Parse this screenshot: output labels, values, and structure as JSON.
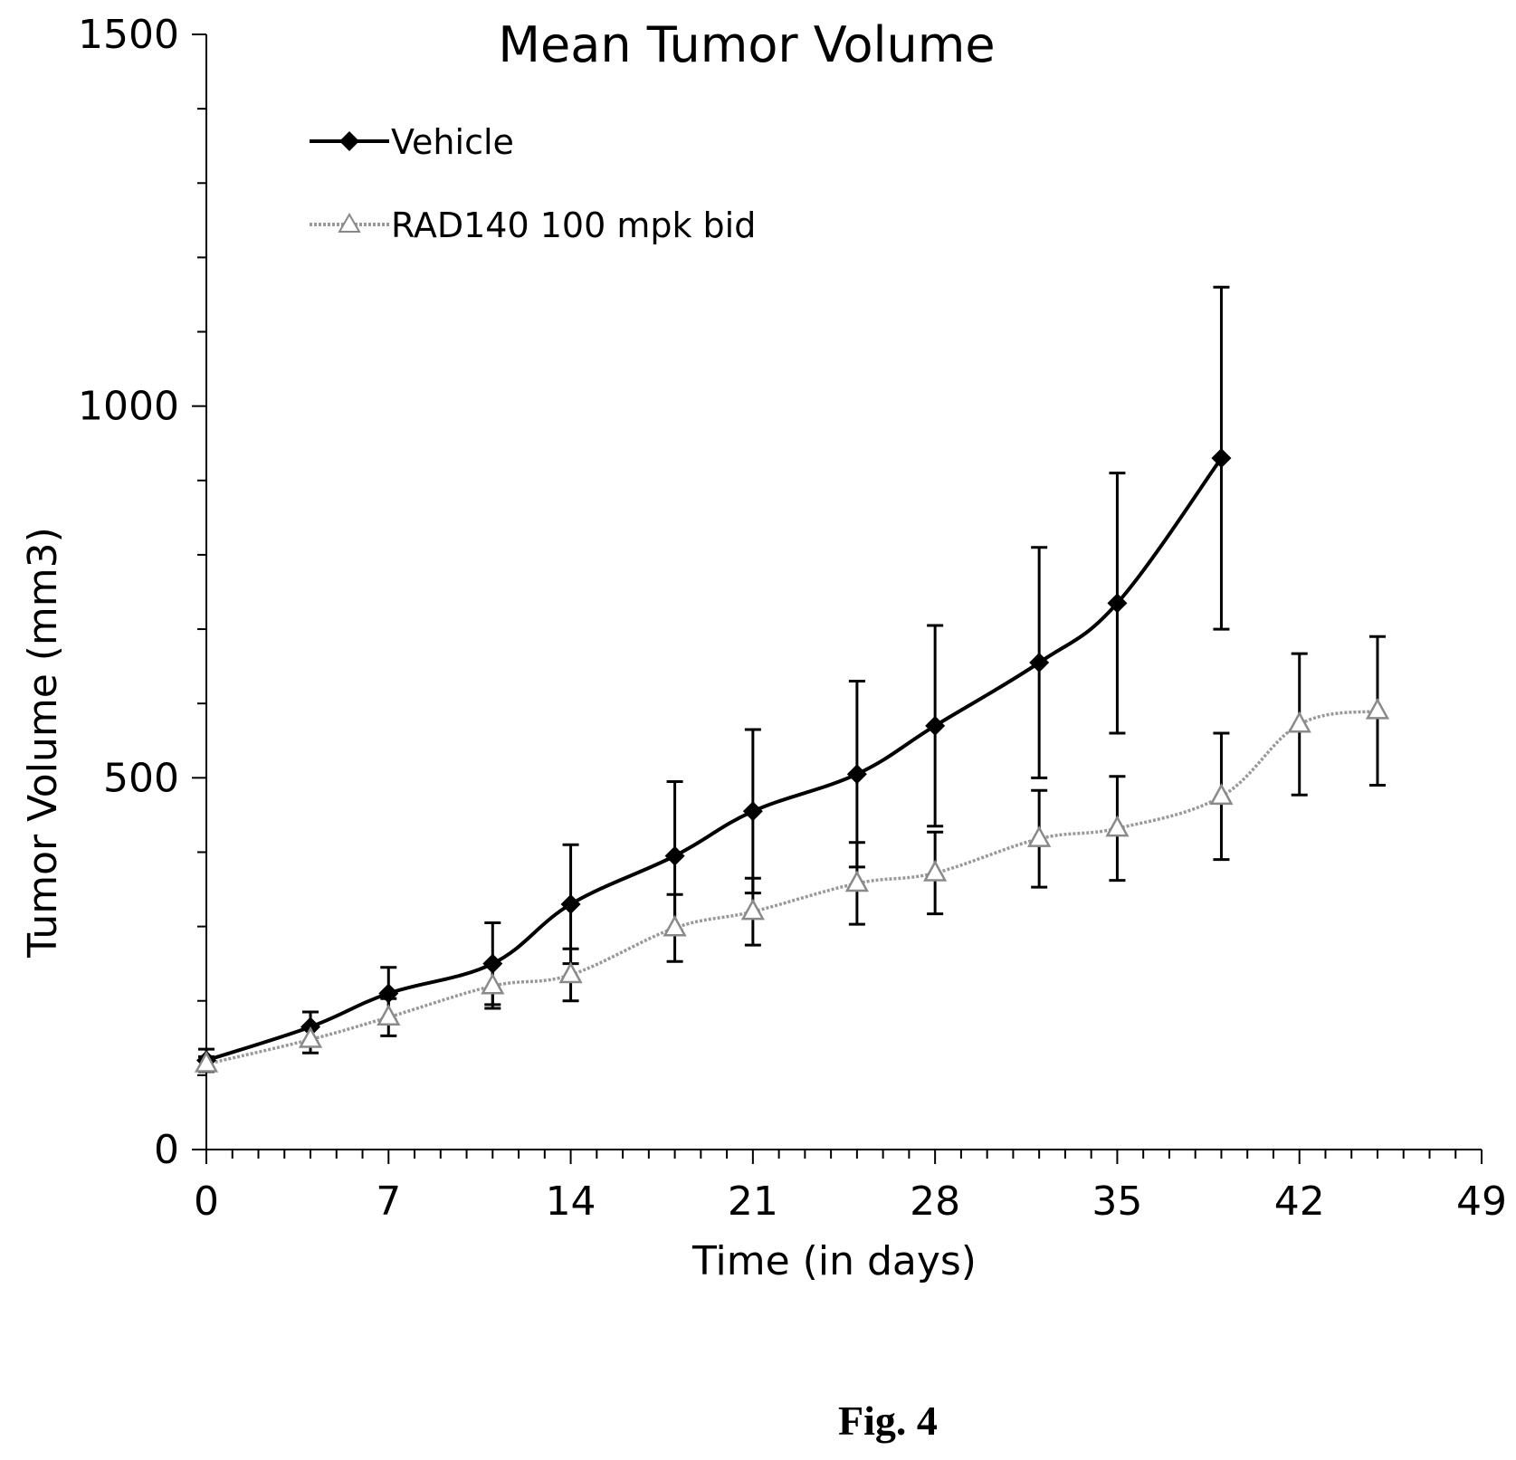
{
  "chart_data": {
    "type": "line",
    "title": "Mean Tumor Volume",
    "xlabel": "Time (in days)",
    "ylabel": "Tumor Volume (mm3)",
    "xlim": [
      0,
      49
    ],
    "ylim": [
      0,
      1500
    ],
    "x_ticks": [
      0,
      7,
      14,
      21,
      28,
      35,
      42,
      49
    ],
    "y_ticks": [
      0,
      500,
      1000,
      1500
    ],
    "legend_position": "top-left",
    "grid": false,
    "series": [
      {
        "name": "Vehicle",
        "marker": "diamond",
        "color": "#000000",
        "points": [
          {
            "x": 0,
            "y": 120,
            "err": 15
          },
          {
            "x": 4,
            "y": 165,
            "err": 20
          },
          {
            "x": 7,
            "y": 210,
            "err": 35
          },
          {
            "x": 11,
            "y": 250,
            "err": 55
          },
          {
            "x": 14,
            "y": 330,
            "err": 80
          },
          {
            "x": 18,
            "y": 395,
            "err": 100
          },
          {
            "x": 21,
            "y": 455,
            "err": 110
          },
          {
            "x": 25,
            "y": 505,
            "err": 125
          },
          {
            "x": 28,
            "y": 570,
            "err": 135
          },
          {
            "x": 32,
            "y": 655,
            "err": 155
          },
          {
            "x": 35,
            "y": 735,
            "err": 175
          },
          {
            "x": 39,
            "y": 930,
            "err": 230
          }
        ]
      },
      {
        "name": "RAD140 100 mpk bid",
        "marker": "triangle",
        "color": "#999999",
        "points": [
          {
            "x": 0,
            "y": 115,
            "err": 10
          },
          {
            "x": 4,
            "y": 148,
            "err": 18
          },
          {
            "x": 7,
            "y": 178,
            "err": 25
          },
          {
            "x": 11,
            "y": 220,
            "err": 30
          },
          {
            "x": 14,
            "y": 235,
            "err": 35
          },
          {
            "x": 18,
            "y": 298,
            "err": 45
          },
          {
            "x": 21,
            "y": 320,
            "err": 45
          },
          {
            "x": 25,
            "y": 358,
            "err": 55
          },
          {
            "x": 28,
            "y": 372,
            "err": 55
          },
          {
            "x": 32,
            "y": 418,
            "err": 65
          },
          {
            "x": 35,
            "y": 432,
            "err": 70
          },
          {
            "x": 39,
            "y": 475,
            "err": 85
          },
          {
            "x": 42,
            "y": 572,
            "err": 95
          },
          {
            "x": 45,
            "y": 590,
            "err": 100
          }
        ]
      }
    ]
  },
  "caption": "Fig. 4"
}
